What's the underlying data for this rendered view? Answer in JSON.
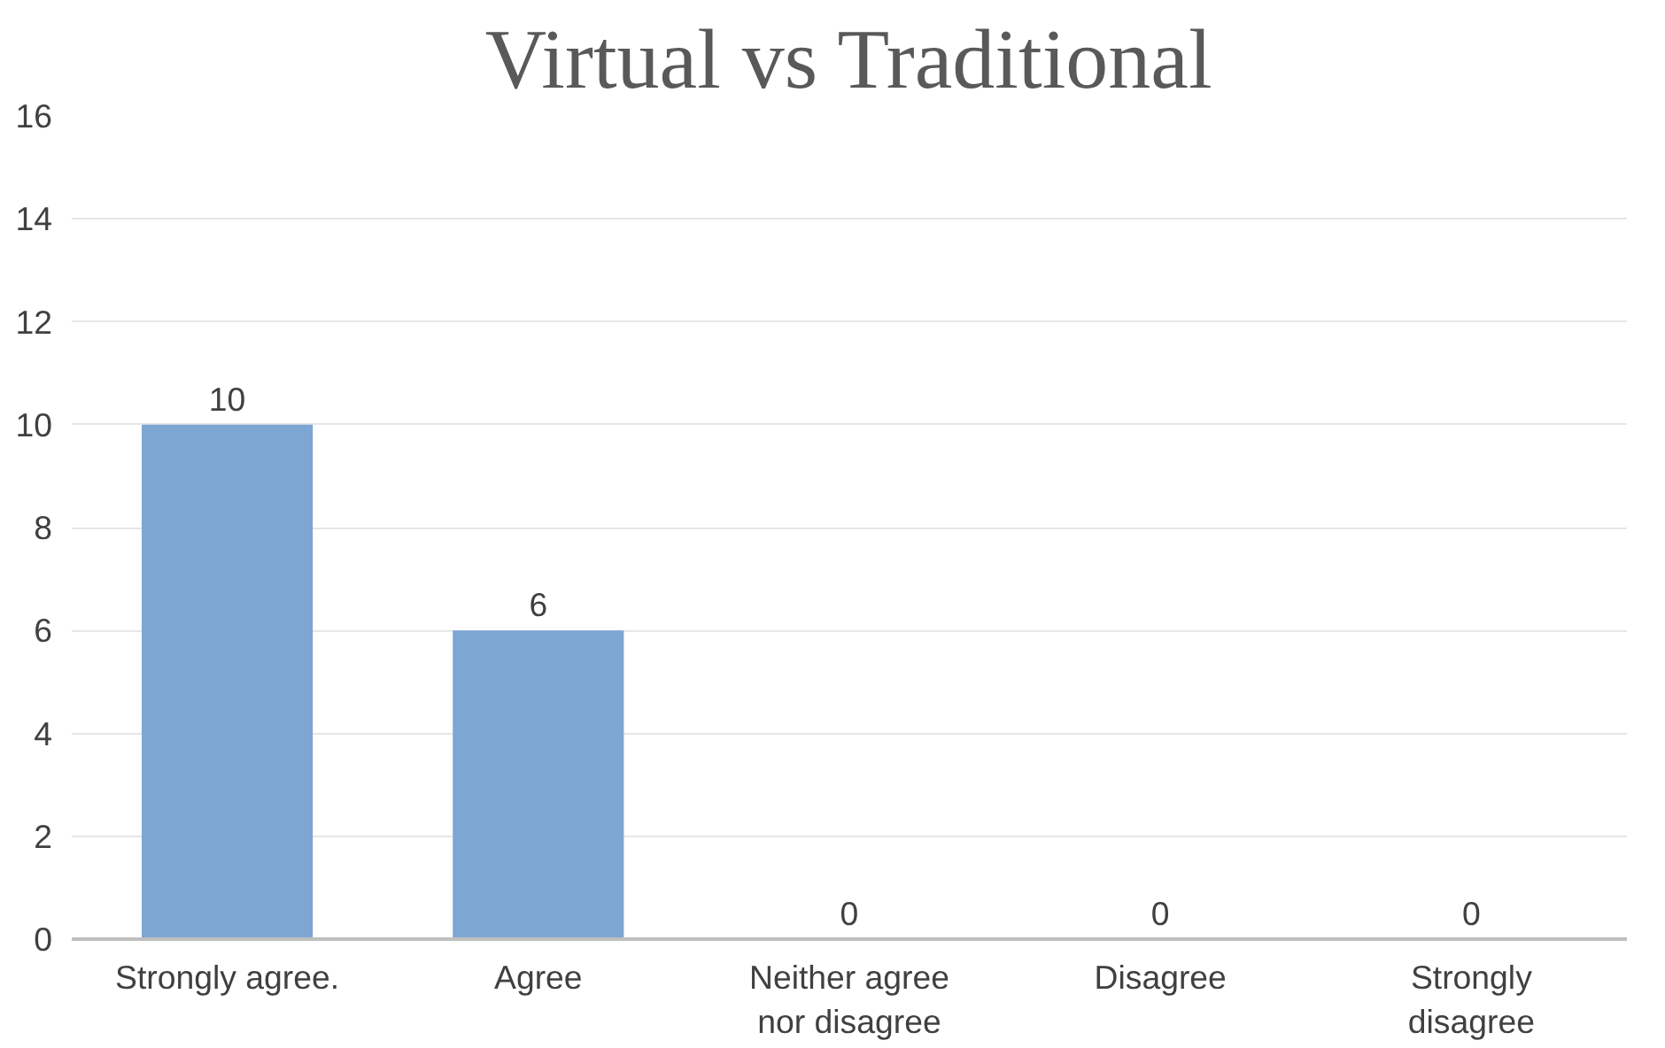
{
  "chart_data": {
    "type": "bar",
    "title": "Virtual vs Traditional",
    "categories": [
      "Strongly agree.",
      "Agree",
      "Neither agree nor disagree",
      "Disagree",
      "Strongly disagree"
    ],
    "values": [
      10,
      6,
      0,
      0,
      0
    ],
    "color": "#7ea6d3",
    "ylim": [
      0,
      16
    ],
    "yticks": [
      0,
      2,
      4,
      6,
      8,
      10,
      12,
      14,
      16
    ],
    "grid": "y",
    "data_labels": true
  }
}
